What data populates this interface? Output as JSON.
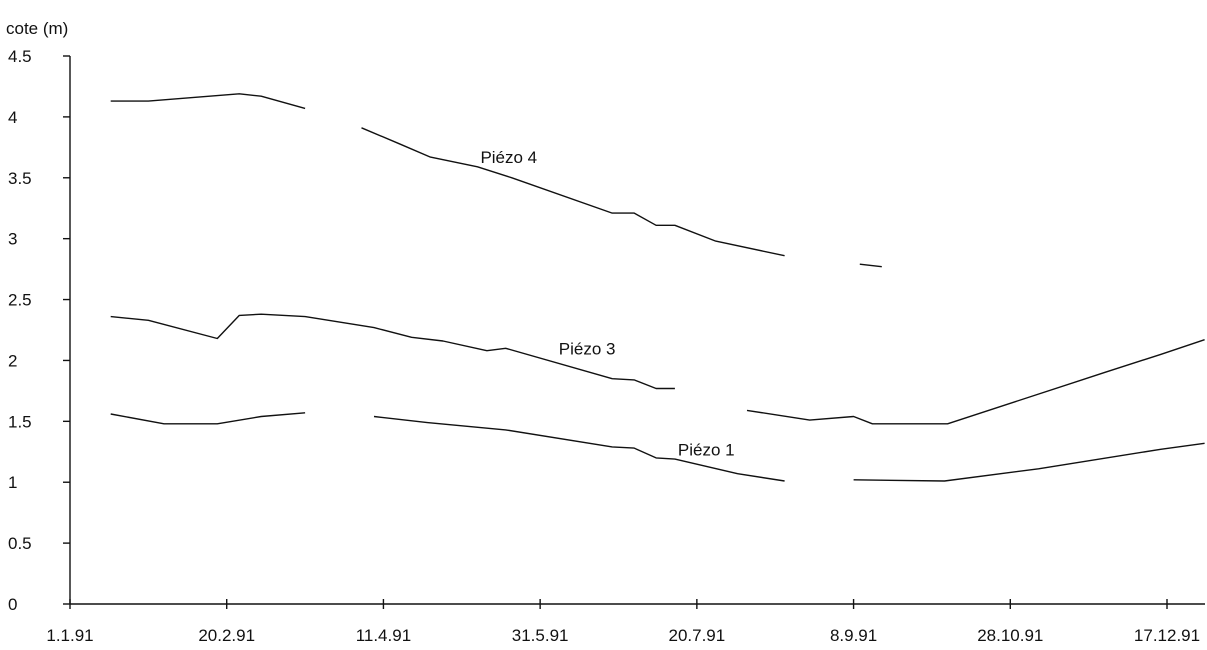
{
  "chart_data": {
    "type": "line",
    "ylabel": "cote (m)",
    "xlabel": "",
    "ylim": [
      0,
      4.5
    ],
    "y_ticks": [
      "0",
      "0.5",
      "1",
      "1.5",
      "2",
      "2.5",
      "3",
      "3.5",
      "4",
      "4.5"
    ],
    "x_ticks": [
      "1.1.91",
      "20.2.91",
      "11.4.91",
      "31.5.91",
      "20.7.91",
      "8.9.91",
      "28.10.91",
      "17.12.91"
    ],
    "x_tick_dates": [
      "1991-01-01",
      "1991-02-20",
      "1991-04-11",
      "1991-05-31",
      "1991-07-20",
      "1991-09-08",
      "1991-10-28",
      "1991-12-17"
    ],
    "grid": false,
    "legend": "none",
    "series": [
      {
        "name": "Piézo 4",
        "segments": [
          [
            [
              "1991-01-14",
              4.13
            ],
            [
              "1991-01-26",
              4.13
            ],
            [
              "1991-02-24",
              4.19
            ],
            [
              "1991-03-03",
              4.17
            ],
            [
              "1991-03-17",
              4.07
            ]
          ],
          [
            [
              "1991-04-04",
              3.91
            ],
            [
              "1991-04-16",
              3.78
            ],
            [
              "1991-04-26",
              3.67
            ],
            [
              "1991-05-11",
              3.59
            ],
            [
              "1991-05-22",
              3.5
            ],
            [
              "1991-06-23",
              3.21
            ],
            [
              "1991-06-30",
              3.21
            ],
            [
              "1991-07-07",
              3.11
            ],
            [
              "1991-07-13",
              3.11
            ],
            [
              "1991-07-26",
              2.98
            ],
            [
              "1991-08-17",
              2.86
            ]
          ],
          [
            [
              "1991-09-10",
              2.79
            ],
            [
              "1991-09-17",
              2.77
            ]
          ]
        ]
      },
      {
        "name": "Piézo 3",
        "segments": [
          [
            [
              "1991-01-14",
              2.36
            ],
            [
              "1991-01-26",
              2.33
            ],
            [
              "1991-02-17",
              2.18
            ],
            [
              "1991-02-24",
              2.37
            ],
            [
              "1991-03-03",
              2.38
            ],
            [
              "1991-03-17",
              2.36
            ],
            [
              "1991-04-08",
              2.27
            ],
            [
              "1991-04-20",
              2.19
            ],
            [
              "1991-04-30",
              2.16
            ],
            [
              "1991-05-14",
              2.08
            ],
            [
              "1991-05-20",
              2.1
            ],
            [
              "1991-06-23",
              1.85
            ],
            [
              "1991-06-30",
              1.84
            ],
            [
              "1991-07-07",
              1.77
            ],
            [
              "1991-07-13",
              1.77
            ]
          ],
          [
            [
              "1991-08-05",
              1.59
            ],
            [
              "1991-08-25",
              1.51
            ],
            [
              "1991-09-08",
              1.54
            ],
            [
              "1991-09-14",
              1.48
            ],
            [
              "1991-10-08",
              1.48
            ],
            [
              "1991-11-27",
              1.9
            ],
            [
              "1991-12-15",
              2.05
            ],
            [
              "1991-12-29",
              2.17
            ]
          ]
        ]
      },
      {
        "name": "Piézo 1",
        "segments": [
          [
            [
              "1991-01-14",
              1.56
            ],
            [
              "1991-01-31",
              1.48
            ],
            [
              "1991-02-17",
              1.48
            ],
            [
              "1991-03-03",
              1.54
            ],
            [
              "1991-03-17",
              1.57
            ]
          ],
          [
            [
              "1991-04-08",
              1.54
            ],
            [
              "1991-04-25",
              1.49
            ],
            [
              "1991-05-20",
              1.43
            ],
            [
              "1991-06-23",
              1.29
            ],
            [
              "1991-06-30",
              1.28
            ],
            [
              "1991-07-07",
              1.2
            ],
            [
              "1991-07-13",
              1.19
            ],
            [
              "1991-08-02",
              1.07
            ],
            [
              "1991-08-17",
              1.01
            ]
          ],
          [
            [
              "1991-09-08",
              1.02
            ],
            [
              "1991-10-07",
              1.01
            ],
            [
              "1991-11-06",
              1.11
            ],
            [
              "1991-12-15",
              1.27
            ],
            [
              "1991-12-29",
              1.32
            ]
          ]
        ]
      }
    ],
    "annotations": [
      {
        "text": "Piézo 4",
        "date": "1991-05-21",
        "y": 3.62
      },
      {
        "text": "Piézo 3",
        "date": "1991-06-15",
        "y": 2.05
      },
      {
        "text": "Piézo 1",
        "date": "1991-07-23",
        "y": 1.22
      }
    ]
  }
}
